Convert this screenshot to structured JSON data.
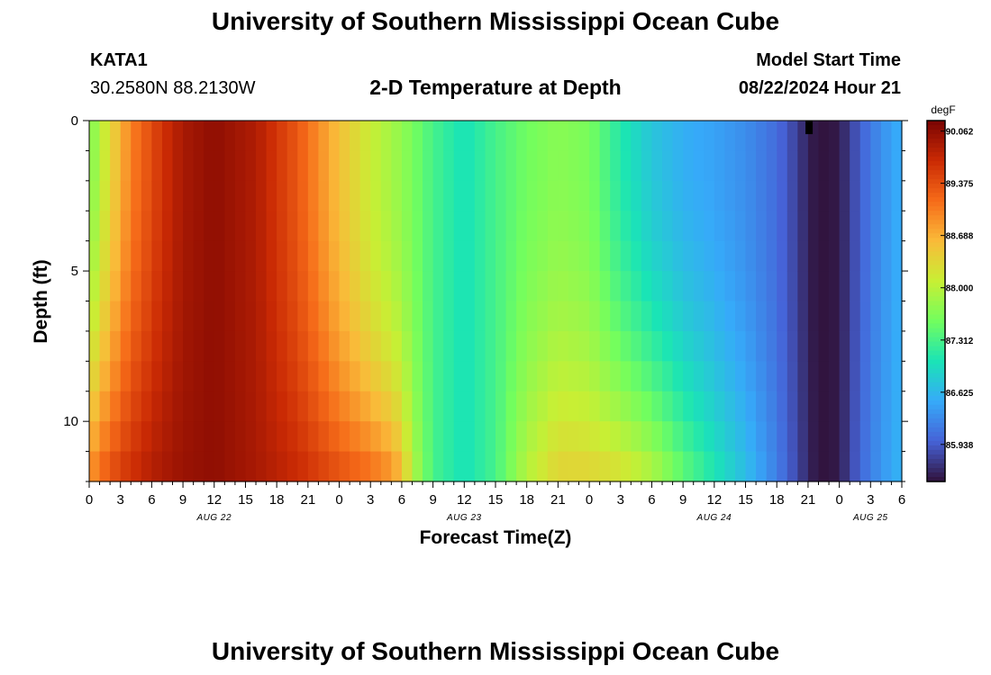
{
  "header": {
    "title": "University of Southern Mississippi Ocean Cube",
    "station_id": "KATA1",
    "station_coords": "30.2580N  88.2130W",
    "plot_title": "2-D Temperature at Depth",
    "model_start_label": "Model Start Time",
    "model_start_value": "08/22/2024 Hour 21"
  },
  "footer": {
    "title": "University of Southern Mississippi Ocean Cube"
  },
  "colors": {
    "colormap": [
      "#30123b",
      "#4662d7",
      "#36aaf9",
      "#1ae4b6",
      "#72fe5e",
      "#c8ef34",
      "#faba39",
      "#f66b19",
      "#ca2a04",
      "#7a0403"
    ]
  },
  "chart_data": {
    "type": "heatmap",
    "title": "2-D Temperature at Depth",
    "xlabel": "Forecast Time(Z)",
    "ylabel": "Depth (ft)",
    "x_hour_range": [
      0,
      78
    ],
    "x_tick_labels": [
      "0",
      "3",
      "6",
      "9",
      "12",
      "15",
      "18",
      "21",
      "0",
      "3",
      "6",
      "9",
      "12",
      "15",
      "18",
      "21",
      "0",
      "3",
      "6",
      "9",
      "12",
      "15",
      "18",
      "21",
      "0",
      "3",
      "6"
    ],
    "date_labels": [
      {
        "label": "AUG 22",
        "hour": 12
      },
      {
        "label": "AUG 23",
        "hour": 36
      },
      {
        "label": "AUG 24",
        "hour": 60
      },
      {
        "label": "AUG 25",
        "hour": 75
      }
    ],
    "y_ticks": [
      0,
      5,
      10
    ],
    "ylim": [
      0,
      12
    ],
    "depth_levels": 12,
    "colorbar": {
      "unit": "degF",
      "tick_labels": [
        "90.062",
        "89.375",
        "88.688",
        "88.000",
        "87.312",
        "86.625",
        "85.938"
      ],
      "range": [
        85.45,
        90.2
      ]
    },
    "surface_profile": [
      {
        "hour": 0,
        "value": 87.6
      },
      {
        "hour": 2,
        "value": 88.3
      },
      {
        "hour": 4,
        "value": 89.0
      },
      {
        "hour": 7,
        "value": 89.6
      },
      {
        "hour": 9,
        "value": 89.9
      },
      {
        "hour": 12,
        "value": 90.06
      },
      {
        "hour": 16,
        "value": 89.85
      },
      {
        "hour": 20,
        "value": 89.3
      },
      {
        "hour": 24,
        "value": 88.55
      },
      {
        "hour": 27,
        "value": 88.1
      },
      {
        "hour": 30,
        "value": 87.75
      },
      {
        "hour": 33,
        "value": 87.3
      },
      {
        "hour": 36,
        "value": 87.0
      },
      {
        "hour": 39,
        "value": 87.3
      },
      {
        "hour": 42,
        "value": 87.55
      },
      {
        "hour": 45,
        "value": 87.7
      },
      {
        "hour": 48,
        "value": 87.6
      },
      {
        "hour": 51,
        "value": 87.1
      },
      {
        "hour": 54,
        "value": 86.75
      },
      {
        "hour": 57,
        "value": 86.55
      },
      {
        "hour": 60,
        "value": 86.45
      },
      {
        "hour": 63,
        "value": 86.3
      },
      {
        "hour": 66,
        "value": 86.05
      },
      {
        "hour": 68,
        "value": 85.75
      },
      {
        "hour": 69,
        "value": 85.55
      },
      {
        "hour": 70,
        "value": 85.45
      },
      {
        "hour": 72,
        "value": 85.5
      },
      {
        "hour": 73,
        "value": 85.75
      },
      {
        "hour": 75,
        "value": 86.15
      },
      {
        "hour": 77,
        "value": 86.45
      },
      {
        "hour": 78,
        "value": 86.55
      }
    ],
    "bottom_profile": [
      {
        "hour": 0,
        "value": 88.9
      },
      {
        "hour": 1,
        "value": 89.2
      },
      {
        "hour": 3,
        "value": 89.55
      },
      {
        "hour": 6,
        "value": 89.85
      },
      {
        "hour": 9,
        "value": 90.0
      },
      {
        "hour": 12,
        "value": 90.06
      },
      {
        "hour": 16,
        "value": 89.9
      },
      {
        "hour": 20,
        "value": 89.7
      },
      {
        "hour": 24,
        "value": 89.4
      },
      {
        "hour": 27,
        "value": 89.2
      },
      {
        "hour": 29,
        "value": 88.95
      },
      {
        "hour": 30,
        "value": 88.65
      },
      {
        "hour": 31,
        "value": 88.0
      },
      {
        "hour": 33,
        "value": 87.3
      },
      {
        "hour": 36,
        "value": 87.0
      },
      {
        "hour": 39,
        "value": 87.3
      },
      {
        "hour": 42,
        "value": 88.0
      },
      {
        "hour": 45,
        "value": 88.4
      },
      {
        "hour": 48,
        "value": 88.4
      },
      {
        "hour": 51,
        "value": 88.3
      },
      {
        "hour": 54,
        "value": 88.0
      },
      {
        "hour": 57,
        "value": 87.5
      },
      {
        "hour": 60,
        "value": 87.1
      },
      {
        "hour": 63,
        "value": 86.7
      },
      {
        "hour": 66,
        "value": 86.2
      },
      {
        "hour": 68,
        "value": 85.8
      },
      {
        "hour": 69,
        "value": 85.6
      },
      {
        "hour": 70,
        "value": 85.45
      },
      {
        "hour": 72,
        "value": 85.5
      },
      {
        "hour": 73,
        "value": 85.8
      },
      {
        "hour": 75,
        "value": 86.2
      },
      {
        "hour": 77,
        "value": 86.5
      },
      {
        "hour": 78,
        "value": 86.6
      }
    ],
    "blend_profile": [
      {
        "hour": 0,
        "value": 0.6
      },
      {
        "hour": 12,
        "value": 0.7
      },
      {
        "hour": 24,
        "value": 0.5
      },
      {
        "hour": 28,
        "value": 0.45
      },
      {
        "hour": 36,
        "value": 0.5
      },
      {
        "hour": 42,
        "value": 0.6
      },
      {
        "hour": 48,
        "value": 0.55
      },
      {
        "hour": 56,
        "value": 0.6
      },
      {
        "hour": 64,
        "value": 0.55
      },
      {
        "hour": 70,
        "value": 0.5
      },
      {
        "hour": 78,
        "value": 0.5
      }
    ],
    "blend_exponent": 1.6,
    "marker": {
      "hour": 69.1,
      "depth_range": [
        0,
        0.45
      ]
    }
  }
}
